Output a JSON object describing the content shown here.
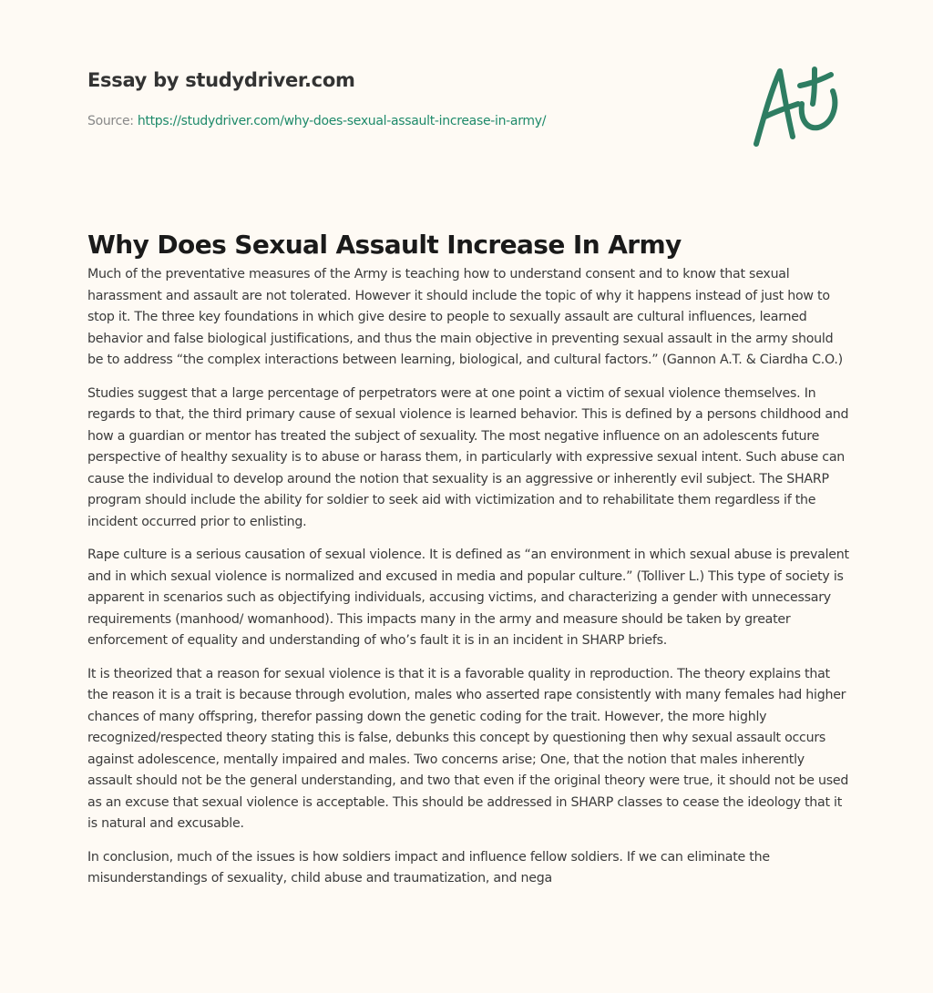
{
  "header": {
    "brand": "Essay by studydriver.com",
    "source_label": "Source:",
    "source_url": "https://studydriver.com/why-does-sexual-assault-increase-in-army/",
    "logo_icon": "a-plus-grade-icon",
    "accent_color": "#2e7d62"
  },
  "essay": {
    "title": "Why Does Sexual Assault Increase In Army",
    "paragraphs": [
      "Much of the preventative measures of the Army is teaching how to understand consent and to know that sexual harassment and assault are not tolerated. However it should include the topic of why it happens instead of just how to stop it. The three key foundations in which give desire to people to sexually assault are cultural influences, learned behavior and false biological justifications, and thus the main objective in preventing sexual assault in the army should be to address “the complex interactions between learning, biological, and cultural factors.” (Gannon A.T. & Ciardha C.O.)",
      "Studies suggest that a large percentage of perpetrators were at one point a victim of sexual violence themselves. In regards to that, the third primary cause of sexual violence is learned behavior. This is defined by a persons childhood and how a guardian or mentor has treated the subject of sexuality. The most negative influence on an adolescents future perspective of healthy sexuality is to abuse or harass them, in particularly with expressive sexual intent. Such abuse can cause the individual to develop around the notion that sexuality is an aggressive or inherently evil subject. The SHARP program should include the ability for soldier to seek aid with victimization and to rehabilitate them regardless if the incident occurred prior to enlisting.",
      "Rape culture is a serious causation of sexual violence. It is defined as “an environment in which sexual abuse is prevalent and in which sexual violence is normalized and excused in media and popular culture.” (Tolliver L.) This type of society is apparent in scenarios such as objectifying individuals, accusing victims, and characterizing a gender with unnecessary requirements (manhood/ womanhood). This impacts many in the army and measure should be taken by greater enforcement of equality and understanding of who’s fault it is in an incident in SHARP briefs.",
      "It is theorized that a reason for sexual violence is that it is a favorable quality in reproduction. The theory explains that the reason it is a trait is because through evolution, males who asserted rape consistently with many females had higher chances of many offspring, therefor passing down the genetic coding for the trait. However, the more highly recognized/respected theory stating this is false, debunks this concept by questioning then why sexual assault occurs against adolescence, mentally impaired and males. Two concerns arise; One, that the notion that males inherently assault should not be the general understanding, and two that even if the original theory were true, it should not be used as an excuse that sexual violence is acceptable. This should be addressed in SHARP classes to cease the ideology that it is natural and excusable.",
      "In conclusion, much of the issues is how soldiers impact and influence fellow soldiers. If we can eliminate the misunderstandings of sexuality, child abuse and traumatization, and nega"
    ]
  }
}
